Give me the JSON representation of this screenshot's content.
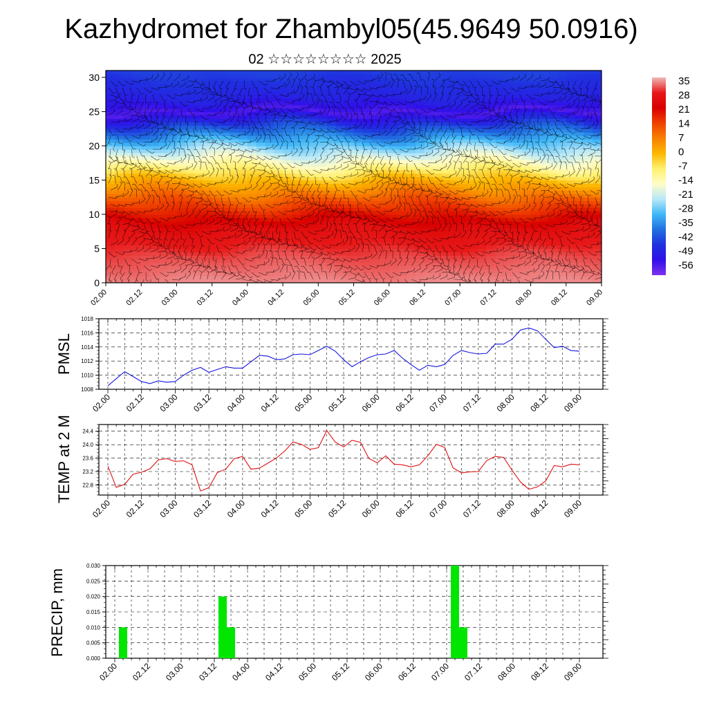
{
  "title": "Kazhydromet for Zhambyl05(45.9649 50.0916)",
  "subtitle": "02 ☆☆☆☆☆☆☆☆ 2025",
  "colors": {
    "pmsl_line": "#1515e0",
    "temp_line": "#e01010",
    "precip_bar": "#00e600",
    "wind_barb": "#000000"
  },
  "colorbar": {
    "labels": [
      "35",
      "28",
      "21",
      "14",
      "7",
      "0",
      "-7",
      "-14",
      "-21",
      "-28",
      "-35",
      "-42",
      "-49",
      "-56"
    ],
    "stops": [
      "#f0b8b8",
      "#e81818",
      "#d80000",
      "#f04000",
      "#f88000",
      "#fcb800",
      "#fff070",
      "#fffcc8",
      "#b8e8f8",
      "#40b8f8",
      "#2070e0",
      "#2030e0",
      "#3010e8",
      "#8030f0"
    ]
  },
  "chart_data": [
    {
      "type": "heatmap",
      "name": "height-time section",
      "ylim": [
        0,
        31
      ],
      "yticks": [
        "0",
        "5",
        "10",
        "15",
        "20",
        "25",
        "30"
      ],
      "xticks": [
        "02.00",
        "02.12",
        "03.00",
        "03.12",
        "04.00",
        "04.12",
        "05.00",
        "05.12",
        "06.00",
        "06.12",
        "07.00",
        "07.12",
        "08.00",
        "08.12",
        "09.00"
      ],
      "value_range": [
        -56,
        35
      ],
      "level_profile": [
        {
          "level": 0,
          "value": 33
        },
        {
          "level": 4,
          "value": 30
        },
        {
          "level": 8,
          "value": 25
        },
        {
          "level": 12,
          "value": 12
        },
        {
          "level": 15,
          "value": 0
        },
        {
          "level": 17,
          "value": -10
        },
        {
          "level": 20,
          "value": -25
        },
        {
          "level": 23,
          "value": -40
        },
        {
          "level": 25,
          "value": -52
        },
        {
          "level": 27,
          "value": -45
        },
        {
          "level": 31,
          "value": -40
        }
      ]
    },
    {
      "type": "line",
      "ylabel": "PMSL",
      "ylim": [
        1008,
        1018
      ],
      "yticks": [
        "1008",
        "1010",
        "1012",
        "1014",
        "1016",
        "1018"
      ],
      "xticks": [
        "02.00",
        "02.12",
        "03.00",
        "03.12",
        "04.00",
        "04.12",
        "05.00",
        "05.12",
        "06.00",
        "06.12",
        "07.00",
        "07.12",
        "08.00",
        "08.12",
        "09.00"
      ],
      "grid": true,
      "series": [
        {
          "values": [
            1008.5,
            1009.5,
            1010.5,
            1009.8,
            1009.1,
            1008.8,
            1009.2,
            1009.0,
            1009.1,
            1010.0,
            1010.7,
            1011.1,
            1010.4,
            1010.8,
            1011.2,
            1011.0,
            1011.0,
            1011.9,
            1012.8,
            1012.7,
            1012.2,
            1012.3,
            1012.9,
            1013.0,
            1012.9,
            1013.5,
            1014.1,
            1013.4,
            1012.2,
            1011.2,
            1011.9,
            1012.5,
            1012.9,
            1013.0,
            1013.5,
            1012.4,
            1011.5,
            1010.7,
            1011.4,
            1011.2,
            1011.5,
            1012.8,
            1013.5,
            1013.2,
            1013.0,
            1013.1,
            1014.4,
            1014.4,
            1015.1,
            1016.4,
            1016.7,
            1016.3,
            1015.1,
            1013.9,
            1014.1,
            1013.5,
            1013.4
          ]
        }
      ]
    },
    {
      "type": "line",
      "ylabel": "TEMP at 2 M",
      "ylim": [
        22.5,
        24.6
      ],
      "yticks": [
        "22.8",
        "23.2",
        "23.6",
        "24.0",
        "24.4"
      ],
      "xticks": [
        "02.00",
        "02.12",
        "03.00",
        "03.12",
        "04.00",
        "04.12",
        "05.00",
        "05.12",
        "06.00",
        "06.12",
        "07.00",
        "07.12",
        "08.00",
        "08.12",
        "09.00"
      ],
      "grid": true,
      "series": [
        {
          "values": [
            23.36,
            22.73,
            22.82,
            23.12,
            23.18,
            23.28,
            23.55,
            23.58,
            23.5,
            23.52,
            23.4,
            22.62,
            22.72,
            23.17,
            23.27,
            23.58,
            23.65,
            23.27,
            23.3,
            23.45,
            23.6,
            23.81,
            24.08,
            24.01,
            23.86,
            23.91,
            24.42,
            24.08,
            23.93,
            24.13,
            24.07,
            23.59,
            23.46,
            23.67,
            23.42,
            23.4,
            23.34,
            23.4,
            23.67,
            24.01,
            23.92,
            23.31,
            23.16,
            23.19,
            23.2,
            23.53,
            23.65,
            23.62,
            23.24,
            22.89,
            22.67,
            22.74,
            22.92,
            23.38,
            23.34,
            23.42,
            23.4
          ]
        }
      ]
    },
    {
      "type": "bar",
      "ylabel": "PRECIP, mm",
      "ylim": [
        0,
        0.03
      ],
      "yticks": [
        "0.000",
        "0.005",
        "0.010",
        "0.015",
        "0.020",
        "0.025",
        "0.030"
      ],
      "xticks": [
        "02.00",
        "02.12",
        "03.00",
        "03.12",
        "04.00",
        "04.12",
        "05.00",
        "05.12",
        "06.00",
        "06.12",
        "07.00",
        "07.12",
        "08.00",
        "08.12",
        "09.00"
      ],
      "grid": true,
      "bars": [
        {
          "x": 1,
          "value": 0.01
        },
        {
          "x": 13,
          "value": 0.02
        },
        {
          "x": 14,
          "value": 0.01
        },
        {
          "x": 41,
          "value": 0.03
        },
        {
          "x": 42,
          "value": 0.01
        }
      ]
    }
  ]
}
